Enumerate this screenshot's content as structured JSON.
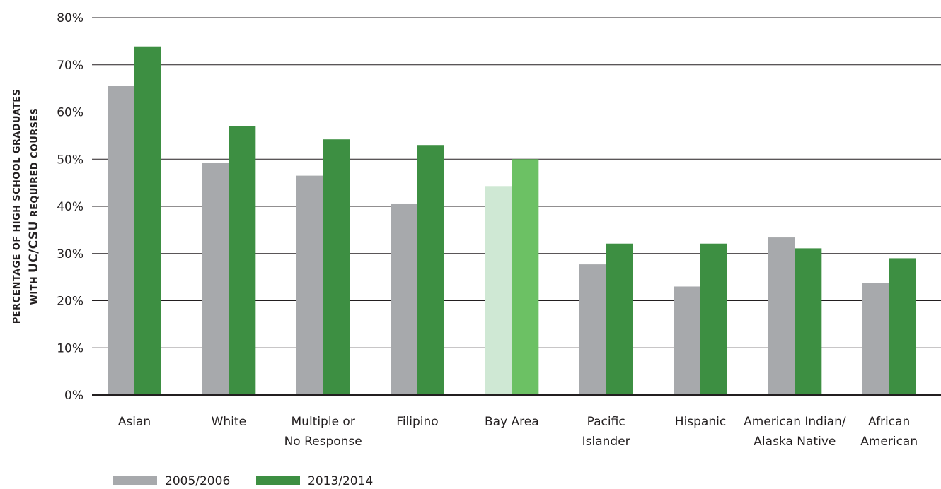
{
  "chart_data": {
    "type": "bar",
    "title": "",
    "xlabel": "",
    "ylabel": {
      "line1": "PERCENTAGE OF HIGH SCHOOL GRADUATES",
      "line2_prefix": "WITH ",
      "line2_emph": "UC/CSU",
      "line2_suffix": " REQUIRED COURSES"
    },
    "ylim": [
      0,
      80
    ],
    "yticks": [
      {
        "value": 0,
        "label": "0%"
      },
      {
        "value": 10,
        "label": "10%"
      },
      {
        "value": 20,
        "label": "20%"
      },
      {
        "value": 30,
        "label": "30%"
      },
      {
        "value": 40,
        "label": "40%"
      },
      {
        "value": 50,
        "label": "50%"
      },
      {
        "value": 60,
        "label": "60%"
      },
      {
        "value": 70,
        "label": "70%"
      },
      {
        "value": 80,
        "label": "80%"
      }
    ],
    "grid": true,
    "legend_position": "bottom-left",
    "categories": [
      [
        "Asian"
      ],
      [
        "White"
      ],
      [
        "Multiple or",
        "No Response"
      ],
      [
        "Filipino"
      ],
      [
        "Bay Area"
      ],
      [
        "Pacific",
        "Islander"
      ],
      [
        "Hispanic"
      ],
      [
        "American Indian/",
        "Alaska Native"
      ],
      [
        "African",
        "American"
      ]
    ],
    "highlight_category_index": 4,
    "series": [
      {
        "name": "2005/2006",
        "color": "#a7a9ac",
        "highlight_color": "#cfe8d4",
        "values": [
          65.5,
          49.2,
          46.5,
          40.6,
          44.3,
          27.7,
          23.0,
          33.4,
          23.7
        ]
      },
      {
        "name": "2013/2014",
        "color": "#3d8f42",
        "highlight_color": "#6cc164",
        "values": [
          73.9,
          57.0,
          54.2,
          53.0,
          50.0,
          32.1,
          32.1,
          31.1,
          29.0
        ]
      }
    ]
  }
}
